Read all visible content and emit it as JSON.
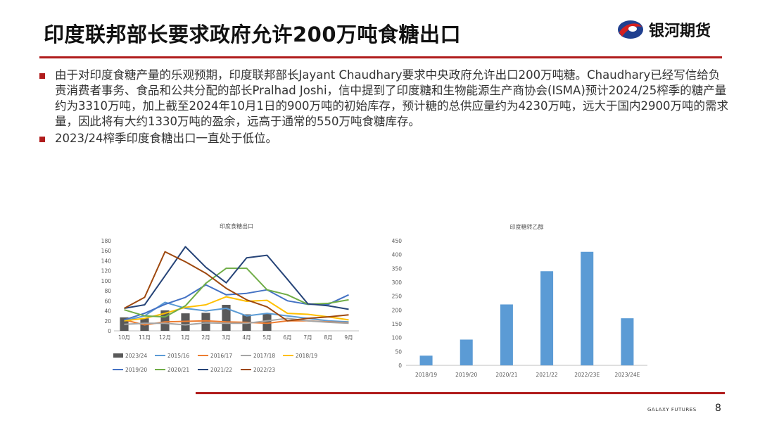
{
  "header": {
    "title": "印度联邦部长要求政府允许200万吨食糖出口",
    "logo_text": "银河期货"
  },
  "bullets": [
    "由于对印度食糖产量的乐观预期，印度联邦部长Jayant  Chaudhary要求中央政府允许出口200万吨糖。Chaudhary已经写信给负责消费者事务、食品和公共分配的部长Pralhad  Joshi，信中提到了印度糖和生物能源生产商协会(ISMA)预计2024/25榨季的糖产量约为3310万吨，加上截至2024年10月1日的900万吨的初始库存，预计糖的总供应量约为4230万吨，远大于国内2900万吨的需求量，因此将有大约1330万吨的盈余，远高于通常的550万吨食糖库存。",
    "2023/24榨季印度食糖出口一直处于低位。"
  ],
  "colors": {
    "accent": "#b01c1c",
    "logo_blue": "#1f3f8f"
  },
  "chart_data": [
    {
      "type": "bar+line",
      "title": "印度食糖出口",
      "categories": [
        "10月",
        "11月",
        "12月",
        "1月",
        "2月",
        "3月",
        "4月",
        "5月",
        "6月",
        "7月",
        "8月",
        "9月"
      ],
      "ylim": [
        0,
        180
      ],
      "yticks": [
        0,
        20,
        40,
        60,
        80,
        100,
        120,
        140,
        160,
        180
      ],
      "bar_series": {
        "name": "2023/24",
        "color": "#595959",
        "values": [
          27,
          25,
          41,
          35,
          36,
          52,
          33,
          35,
          null,
          null,
          null,
          null
        ]
      },
      "series": [
        {
          "name": "2015/16",
          "color": "#5b9bd5",
          "values": [
            20,
            30,
            57,
            45,
            40,
            45,
            30,
            35,
            30,
            25,
            20,
            18
          ]
        },
        {
          "name": "2016/17",
          "color": "#ed7d31",
          "values": [
            22,
            12,
            18,
            19,
            20,
            18,
            17,
            15,
            20,
            20,
            18,
            16
          ]
        },
        {
          "name": "2017/18",
          "color": "#a5a5a5",
          "values": [
            13,
            15,
            15,
            12,
            16,
            15,
            15,
            20,
            25,
            20,
            17,
            15
          ]
        },
        {
          "name": "2018/19",
          "color": "#ffc000",
          "values": [
            20,
            25,
            35,
            47,
            52,
            68,
            59,
            61,
            35,
            33,
            28,
            22
          ]
        },
        {
          "name": "2019/20",
          "color": "#4472c4",
          "values": [
            22,
            35,
            53,
            67,
            92,
            72,
            75,
            82,
            60,
            53,
            53,
            72
          ]
        },
        {
          "name": "2020/21",
          "color": "#70ad47",
          "values": [
            42,
            30,
            28,
            50,
            95,
            125,
            125,
            82,
            72,
            53,
            55,
            62
          ]
        },
        {
          "name": "2021/22",
          "color": "#264478",
          "values": [
            45,
            52,
            110,
            168,
            127,
            96,
            146,
            151,
            103,
            54,
            50,
            43
          ]
        },
        {
          "name": "2022/23",
          "color": "#9e480e",
          "values": [
            45,
            67,
            158,
            138,
            115,
            85,
            62,
            48,
            20,
            25,
            28,
            32
          ]
        }
      ]
    },
    {
      "type": "bar",
      "title": "印度糖转乙醇",
      "categories": [
        "2018/19",
        "2019/20",
        "2020/21",
        "2021/22",
        "2022/23E",
        "2023/24E"
      ],
      "values": [
        35,
        93,
        220,
        340,
        410,
        170
      ],
      "color": "#5b9bd5",
      "ylim": [
        0,
        450
      ],
      "yticks": [
        0,
        50,
        100,
        150,
        200,
        250,
        300,
        350,
        400,
        450
      ]
    }
  ],
  "footer": {
    "brand": "GALAXY FUTURES",
    "page_number": "8"
  }
}
